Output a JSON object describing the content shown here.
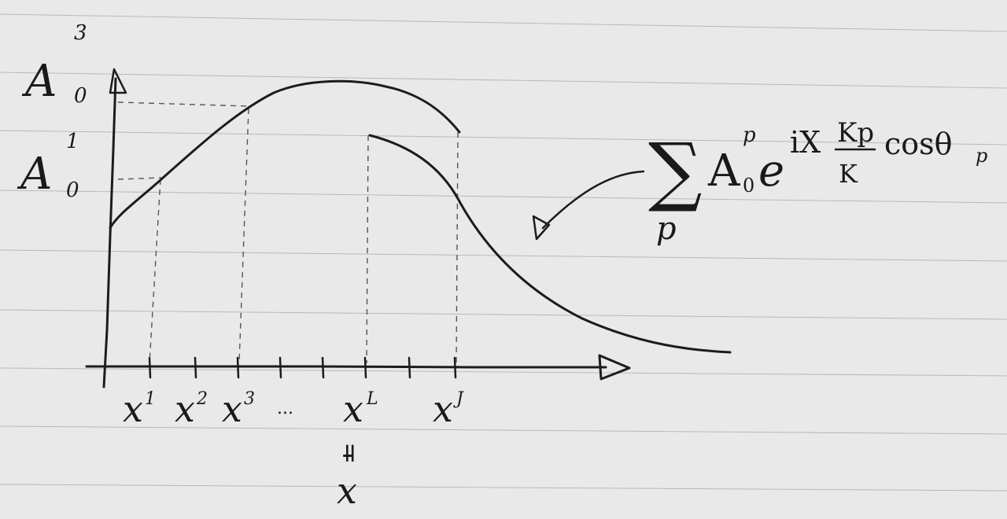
{
  "diagram": {
    "y_axis_labels": [
      {
        "base": "A",
        "sub": "0",
        "sup": "3"
      },
      {
        "base": "A",
        "sub": "0",
        "sup": "1"
      }
    ],
    "x_axis_labels": [
      {
        "base": "x",
        "sup": "1"
      },
      {
        "base": "x",
        "sup": "2"
      },
      {
        "base": "x",
        "sup": "3"
      },
      {
        "base": "x",
        "sup": "L"
      },
      {
        "base": "x",
        "sup": "J"
      }
    ],
    "ellipsis": "...",
    "equals_sign": "=",
    "x_bar": {
      "base": "x",
      "bar": "¯"
    },
    "formula": {
      "sum": "∑",
      "sum_index": "p",
      "term": "A",
      "term_sub": "0",
      "term_sup": "p",
      "exp_base": "e",
      "exponent_prefix": "iX",
      "fraction_num": "Kp",
      "fraction_den": "K",
      "exponent_suffix": "cosθ",
      "exponent_suffix_sub": "p"
    }
  }
}
